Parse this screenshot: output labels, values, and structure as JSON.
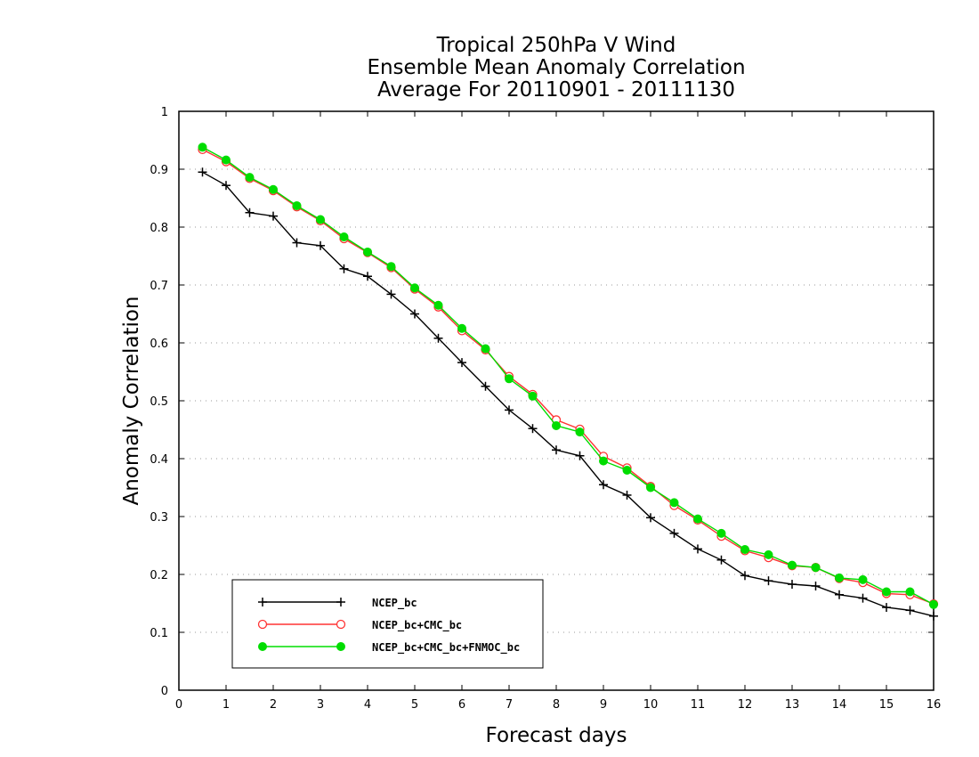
{
  "chart_data": {
    "type": "line",
    "title_lines": [
      "Tropical 250hPa V Wind",
      "Ensemble Mean Anomaly Correlation",
      "Average For 20110901 - 20111130"
    ],
    "xlabel": "Forecast days",
    "ylabel": "Anomaly Correlation",
    "xlim": [
      0,
      16
    ],
    "ylim": [
      0,
      1
    ],
    "xticks": [
      0,
      1,
      2,
      3,
      4,
      5,
      6,
      7,
      8,
      9,
      10,
      11,
      12,
      13,
      14,
      15,
      16
    ],
    "yticks": [
      0,
      0.1,
      0.2,
      0.3,
      0.4,
      0.5,
      0.6,
      0.7,
      0.8,
      0.9,
      1
    ],
    "ytick_labels": [
      "0",
      "0.1",
      "0.2",
      "0.3",
      "0.4",
      "0.5",
      "0.6",
      "0.7",
      "0.8",
      "0.9",
      "1"
    ],
    "grid": "horizontal dotted",
    "legend_position": "bottom-left",
    "x": [
      0.5,
      1,
      1.5,
      2,
      2.5,
      3,
      3.5,
      4,
      4.5,
      5,
      5.5,
      6,
      6.5,
      7,
      7.5,
      8,
      8.5,
      9,
      9.5,
      10,
      10.5,
      11,
      11.5,
      12,
      12.5,
      13,
      13.5,
      14,
      14.5,
      15,
      15.5,
      16
    ],
    "series": [
      {
        "name": "NCEP_bc",
        "color": "#000000",
        "marker": "plus",
        "values": [
          0.895,
          0.872,
          0.825,
          0.819,
          0.773,
          0.768,
          0.728,
          0.715,
          0.684,
          0.65,
          0.608,
          0.566,
          0.525,
          0.484,
          0.452,
          0.415,
          0.405,
          0.355,
          0.337,
          0.298,
          0.271,
          0.244,
          0.225,
          0.198,
          0.189,
          0.183,
          0.18,
          0.165,
          0.159,
          0.143,
          0.138,
          0.128
        ]
      },
      {
        "name": "NCEP_bc+CMC_bc",
        "color": "#ff3333",
        "marker": "open-circle",
        "values": [
          0.934,
          0.913,
          0.884,
          0.863,
          0.835,
          0.811,
          0.78,
          0.756,
          0.73,
          0.693,
          0.662,
          0.621,
          0.588,
          0.542,
          0.511,
          0.467,
          0.451,
          0.404,
          0.384,
          0.352,
          0.319,
          0.294,
          0.266,
          0.241,
          0.229,
          0.215,
          0.212,
          0.193,
          0.186,
          0.167,
          0.165,
          0.149
        ]
      },
      {
        "name": "NCEP_bc+CMC_bc+FNMOC_bc",
        "color": "#00dd00",
        "marker": "filled-circle",
        "values": [
          0.938,
          0.916,
          0.886,
          0.865,
          0.837,
          0.813,
          0.783,
          0.757,
          0.732,
          0.695,
          0.665,
          0.625,
          0.59,
          0.538,
          0.508,
          0.457,
          0.446,
          0.396,
          0.38,
          0.35,
          0.324,
          0.296,
          0.271,
          0.243,
          0.234,
          0.216,
          0.212,
          0.194,
          0.191,
          0.17,
          0.17,
          0.148
        ]
      }
    ]
  }
}
